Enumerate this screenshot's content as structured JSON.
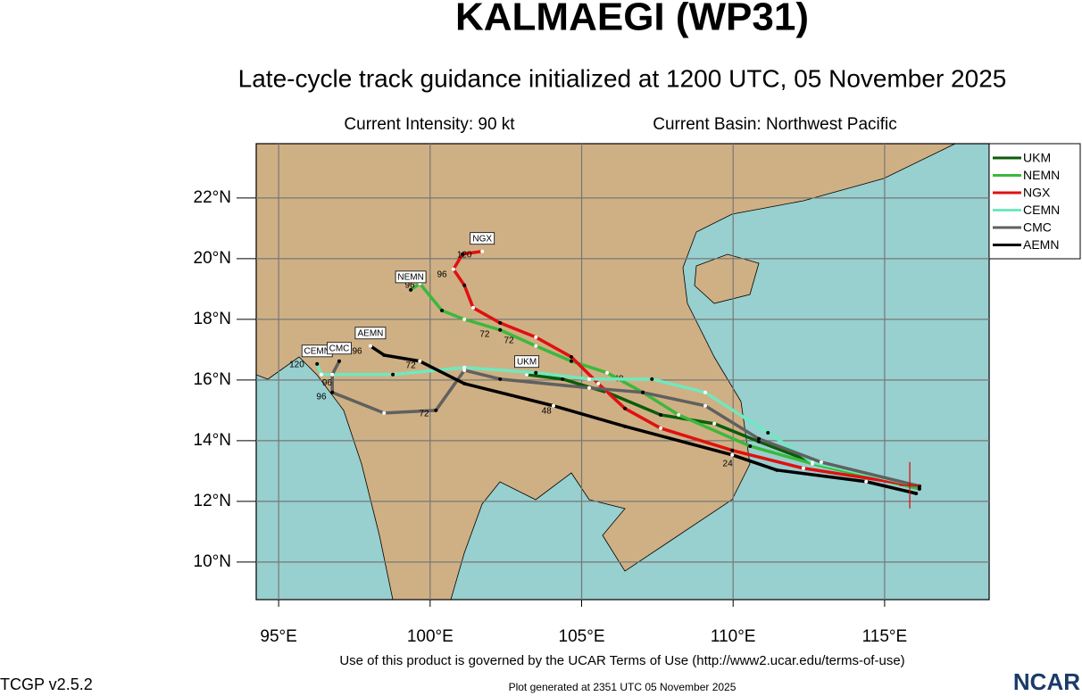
{
  "chart_data": {
    "type": "line",
    "title": "KALMAEGI (WP31)",
    "subtitle": "Late-cycle track guidance initialized at 1200 UTC, 05 November 2025",
    "intensity": "Current Intensity: 90 kt",
    "basin": "Current Basin: Northwest Pacific",
    "terms": "Use of this product is governed by the UCAR Terms of Use (http://www2.ucar.edu/terms-of-use)",
    "version": "TCGP v2.5.2",
    "generated": "Plot generated at 2351 UTC   05 November 2025",
    "logo": "NCAR",
    "xlim": [
      94.26,
      118.45
    ],
    "ylim": [
      8.76,
      23.79
    ],
    "xticks": [
      {
        "value": 95,
        "label": "95°E"
      },
      {
        "value": 100,
        "label": "100°E"
      },
      {
        "value": 105,
        "label": "105°E"
      },
      {
        "value": 110,
        "label": "110°E"
      },
      {
        "value": 115,
        "label": "115°E"
      }
    ],
    "yticks": [
      {
        "value": 10,
        "label": "10°N"
      },
      {
        "value": 12,
        "label": "12°N"
      },
      {
        "value": 14,
        "label": "14°N"
      },
      {
        "value": 16,
        "label": "16°N"
      },
      {
        "value": 18,
        "label": "18°N"
      },
      {
        "value": 20,
        "label": "20°N"
      },
      {
        "value": 22,
        "label": "22°N"
      }
    ],
    "grid": true,
    "current_position": {
      "lon": 115.83,
      "lat": 12.53,
      "color": "#e00000"
    },
    "series": [
      {
        "name": "UKM",
        "color": "#0a5c0a",
        "lon": [
          116.15,
          112.91,
          110.85,
          109.38,
          107.61,
          105.84,
          104.37,
          103.19
        ],
        "lat": [
          12.5,
          13.18,
          13.97,
          14.56,
          14.85,
          15.59,
          16.03,
          16.18
        ],
        "hour_labels": [
          {
            "lon": 106.22,
            "lat": 16.03,
            "hour": 48
          }
        ]
      },
      {
        "name": "NEMN",
        "color": "#3cb83c",
        "lon": [
          116.15,
          112.62,
          110.56,
          108.2,
          107.02,
          105.84,
          104.66,
          103.49,
          102.31,
          101.13,
          100.39,
          99.66,
          99.36
        ],
        "lat": [
          12.41,
          13.24,
          13.82,
          14.85,
          15.59,
          16.24,
          16.62,
          17.12,
          17.65,
          18.0,
          18.29,
          19.18,
          18.97
        ],
        "hour_labels": [
          {
            "lon": 99.33,
            "lat": 19.12,
            "hour": 96
          },
          {
            "lon": 102.6,
            "lat": 17.3,
            "hour": 72
          }
        ]
      },
      {
        "name": "NGX",
        "color": "#e01010",
        "lon": [
          116.15,
          112.32,
          109.97,
          107.61,
          106.43,
          105.55,
          104.66,
          103.49,
          102.31,
          101.42,
          101.13,
          100.77,
          101.07,
          101.72
        ],
        "lat": [
          12.5,
          13.09,
          13.68,
          14.41,
          15.06,
          15.88,
          16.76,
          17.41,
          17.88,
          18.38,
          19.12,
          19.65,
          20.15,
          20.24
        ],
        "hour_labels": [
          {
            "lon": 101.13,
            "lat": 20.12,
            "hour": 120
          },
          {
            "lon": 100.39,
            "lat": 19.47,
            "hour": 96
          },
          {
            "lon": 101.8,
            "lat": 17.5,
            "hour": 72
          }
        ]
      },
      {
        "name": "CEMN",
        "color": "#70e8c0",
        "lon": [
          116.15,
          112.62,
          111.15,
          109.08,
          107.32,
          105.25,
          103.49,
          101.13,
          98.77,
          96.41,
          96.27
        ],
        "lat": [
          12.5,
          13.29,
          14.26,
          15.59,
          16.03,
          16.03,
          16.24,
          16.41,
          16.18,
          16.18,
          16.53
        ],
        "hour_labels": [
          {
            "lon": 99.36,
            "lat": 16.47,
            "hour": 72
          },
          {
            "lon": 95.6,
            "lat": 16.5,
            "hour": 120
          }
        ]
      },
      {
        "name": "CMC",
        "color": "#606060",
        "lon": [
          116.15,
          112.91,
          110.85,
          109.08,
          107.02,
          105.25,
          102.31,
          101.13,
          100.19,
          98.48,
          96.77,
          96.77,
          97.0
        ],
        "lat": [
          12.5,
          13.29,
          14.06,
          15.15,
          15.59,
          15.74,
          16.03,
          16.32,
          15.0,
          14.91,
          15.59,
          16.18,
          16.62
        ],
        "hour_labels": [
          {
            "lon": 99.8,
            "lat": 14.88,
            "hour": 72
          },
          {
            "lon": 96.41,
            "lat": 15.44,
            "hour": 96
          },
          {
            "lon": 96.6,
            "lat": 15.9,
            "hour": 96
          }
        ]
      },
      {
        "name": "AEMN",
        "color": "#000000",
        "lon": [
          116.04,
          114.39,
          111.44,
          109.97,
          106.43,
          104.07,
          101.13,
          99.66,
          98.48,
          98.03
        ],
        "lat": [
          12.26,
          12.65,
          13.03,
          13.53,
          14.47,
          15.15,
          15.88,
          16.62,
          16.82,
          17.12
        ],
        "hour_labels": [
          {
            "lon": 97.59,
            "lat": 16.94,
            "hour": 96
          },
          {
            "lon": 103.84,
            "lat": 14.97,
            "hour": 48
          },
          {
            "lon": 109.82,
            "lat": 13.24,
            "hour": 24
          }
        ]
      }
    ]
  }
}
